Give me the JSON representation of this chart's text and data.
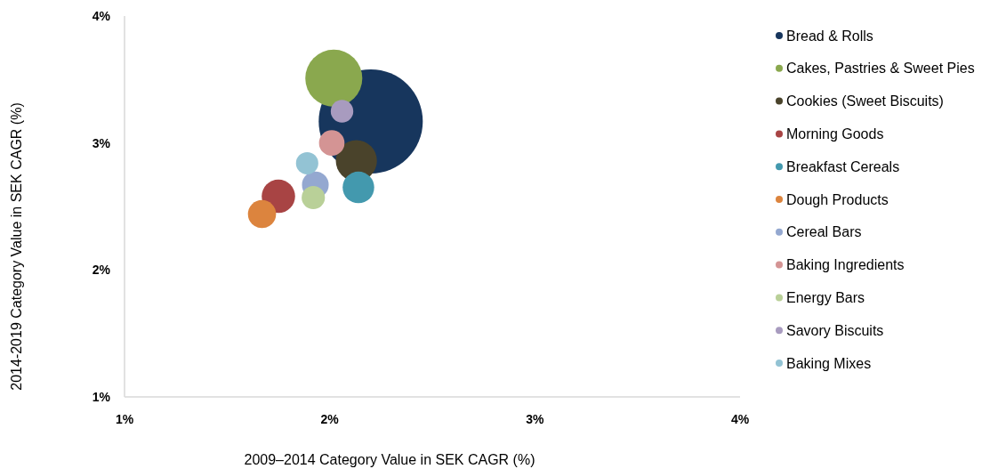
{
  "chart_data": {
    "type": "bubble",
    "xlabel": "2009–2014 Category Value in SEK CAGR (%)",
    "ylabel": "2014-2019 Category Value in SEK CAGR (%)",
    "xlim": [
      1,
      4
    ],
    "ylim": [
      1,
      4
    ],
    "xticks": [
      {
        "value": 1,
        "label": "1%"
      },
      {
        "value": 2,
        "label": "2%"
      },
      {
        "value": 3,
        "label": "3%"
      },
      {
        "value": 4,
        "label": "4%"
      }
    ],
    "yticks": [
      {
        "value": 1,
        "label": "1%"
      },
      {
        "value": 2,
        "label": "2%"
      },
      {
        "value": 3,
        "label": "3%"
      },
      {
        "value": 4,
        "label": "4%"
      }
    ],
    "legend": "right",
    "series": [
      {
        "name": "Bread & Rolls",
        "color": "#17365d",
        "x": [
          2.2
        ],
        "values": [
          3.17
        ],
        "sizes": [
          1
        ]
      },
      {
        "name": "Cakes, Pastries & Sweet Pies",
        "color": "#8aa84e",
        "x": [
          2.02
        ],
        "values": [
          3.51
        ],
        "sizes": [
          0.3
        ]
      },
      {
        "name": "Cookies (Sweet Biscuits)",
        "color": "#4a432b",
        "x": [
          2.13
        ],
        "values": [
          2.86
        ],
        "sizes": [
          0.156
        ]
      },
      {
        "name": "Morning Goods",
        "color": "#a84444",
        "x": [
          1.75
        ],
        "values": [
          2.58
        ],
        "sizes": [
          0.103
        ]
      },
      {
        "name": "Breakfast Cereals",
        "color": "#4399ae",
        "x": [
          2.14
        ],
        "values": [
          2.65
        ],
        "sizes": [
          0.092
        ]
      },
      {
        "name": "Dough Products",
        "color": "#dc843e",
        "x": [
          1.67
        ],
        "values": [
          2.44
        ],
        "sizes": [
          0.073
        ]
      },
      {
        "name": "Cereal Bars",
        "color": "#94a8d0",
        "x": [
          1.93
        ],
        "values": [
          2.67
        ],
        "sizes": [
          0.066
        ]
      },
      {
        "name": "Baking Ingredients",
        "color": "#d49494",
        "x": [
          2.01
        ],
        "values": [
          3.0
        ],
        "sizes": [
          0.06
        ]
      },
      {
        "name": "Energy Bars",
        "color": "#b9d098",
        "x": [
          1.92
        ],
        "values": [
          2.57
        ],
        "sizes": [
          0.05
        ]
      },
      {
        "name": "Savory Biscuits",
        "color": "#a89bbf",
        "x": [
          2.06
        ],
        "values": [
          3.25
        ],
        "sizes": [
          0.047
        ]
      },
      {
        "name": "Baking Mixes",
        "color": "#93c3d4",
        "x": [
          1.89
        ],
        "values": [
          2.84
        ],
        "sizes": [
          0.046
        ]
      }
    ]
  }
}
